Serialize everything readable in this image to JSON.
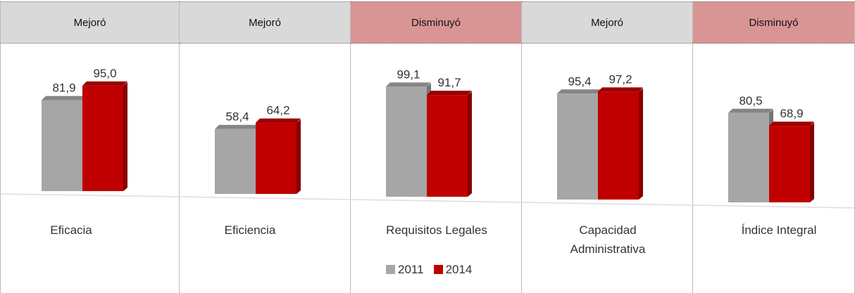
{
  "header": [
    "Mejoró",
    "Mejoró",
    "Disminuyó",
    "Mejoró",
    "Disminuyó"
  ],
  "header_colors": [
    "#d9d9d9",
    "#d9d9d9",
    "#d99594",
    "#d9d9d9",
    "#d99594"
  ],
  "chart_data": [
    {
      "type": "bar",
      "categories": [
        "Eficacia"
      ],
      "series": [
        {
          "name": "2011",
          "color": "#a6a6a6",
          "values": [
            81.9
          ],
          "value_labels": [
            "81,9"
          ]
        },
        {
          "name": "2014",
          "color": "#c00000",
          "values": [
            95.0
          ],
          "value_labels": [
            "95,0"
          ]
        }
      ]
    },
    {
      "type": "bar",
      "categories": [
        "Eficiencia"
      ],
      "series": [
        {
          "name": "2011",
          "color": "#a6a6a6",
          "values": [
            58.4
          ],
          "value_labels": [
            "58,4"
          ]
        },
        {
          "name": "2014",
          "color": "#c00000",
          "values": [
            64.2
          ],
          "value_labels": [
            "64,2"
          ]
        }
      ]
    },
    {
      "type": "bar",
      "categories": [
        "Requisitos Legales"
      ],
      "legend": true,
      "series": [
        {
          "name": "2011",
          "color": "#a6a6a6",
          "values": [
            99.1
          ],
          "value_labels": [
            "99,1"
          ]
        },
        {
          "name": "2014",
          "color": "#c00000",
          "values": [
            91.7
          ],
          "value_labels": [
            "91,7"
          ]
        }
      ]
    },
    {
      "type": "bar",
      "categories": [
        "Capacidad Administrativa"
      ],
      "series": [
        {
          "name": "2011",
          "color": "#a6a6a6",
          "values": [
            95.4
          ],
          "value_labels": [
            "95,4"
          ]
        },
        {
          "name": "2014",
          "color": "#c00000",
          "values": [
            97.2
          ],
          "value_labels": [
            "97,2"
          ]
        }
      ]
    },
    {
      "type": "bar",
      "categories": [
        "Índice Integral"
      ],
      "series": [
        {
          "name": "2011",
          "color": "#a6a6a6",
          "values": [
            80.5
          ],
          "value_labels": [
            "80,5"
          ]
        },
        {
          "name": "2014",
          "color": "#c00000",
          "values": [
            68.9
          ],
          "value_labels": [
            "68,9"
          ]
        }
      ]
    }
  ]
}
